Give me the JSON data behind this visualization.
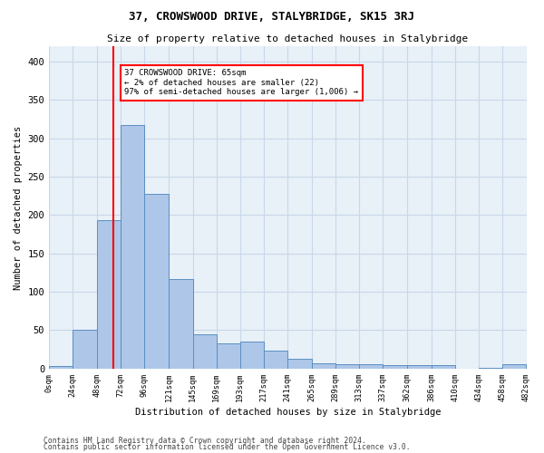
{
  "title": "37, CROWSWOOD DRIVE, STALYBRIDGE, SK15 3RJ",
  "subtitle": "Size of property relative to detached houses in Stalybridge",
  "xlabel": "Distribution of detached houses by size in Stalybridge",
  "ylabel": "Number of detached properties",
  "bar_edges": [
    0,
    24,
    48,
    72,
    96,
    121,
    145,
    169,
    193,
    217,
    241,
    265,
    289,
    313,
    337,
    362,
    386,
    410,
    434,
    458,
    482
  ],
  "bar_heights": [
    3,
    50,
    193,
    317,
    228,
    116,
    45,
    33,
    35,
    23,
    13,
    7,
    5,
    5,
    4,
    4,
    4,
    0,
    1,
    5
  ],
  "bar_color": "#aec6e8",
  "bar_edge_color": "#5a8fc2",
  "grid_color": "#c8d8e8",
  "bg_color": "#e8f0f8",
  "red_line_x": 65,
  "annotation_text": "37 CROWSWOOD DRIVE: 65sqm\n← 2% of detached houses are smaller (22)\n97% of semi-detached houses are larger (1,006) →",
  "ylim": [
    0,
    420
  ],
  "yticks": [
    0,
    50,
    100,
    150,
    200,
    250,
    300,
    350,
    400
  ],
  "footer_line1": "Contains HM Land Registry data © Crown copyright and database right 2024.",
  "footer_line2": "Contains public sector information licensed under the Open Government Licence v3.0."
}
